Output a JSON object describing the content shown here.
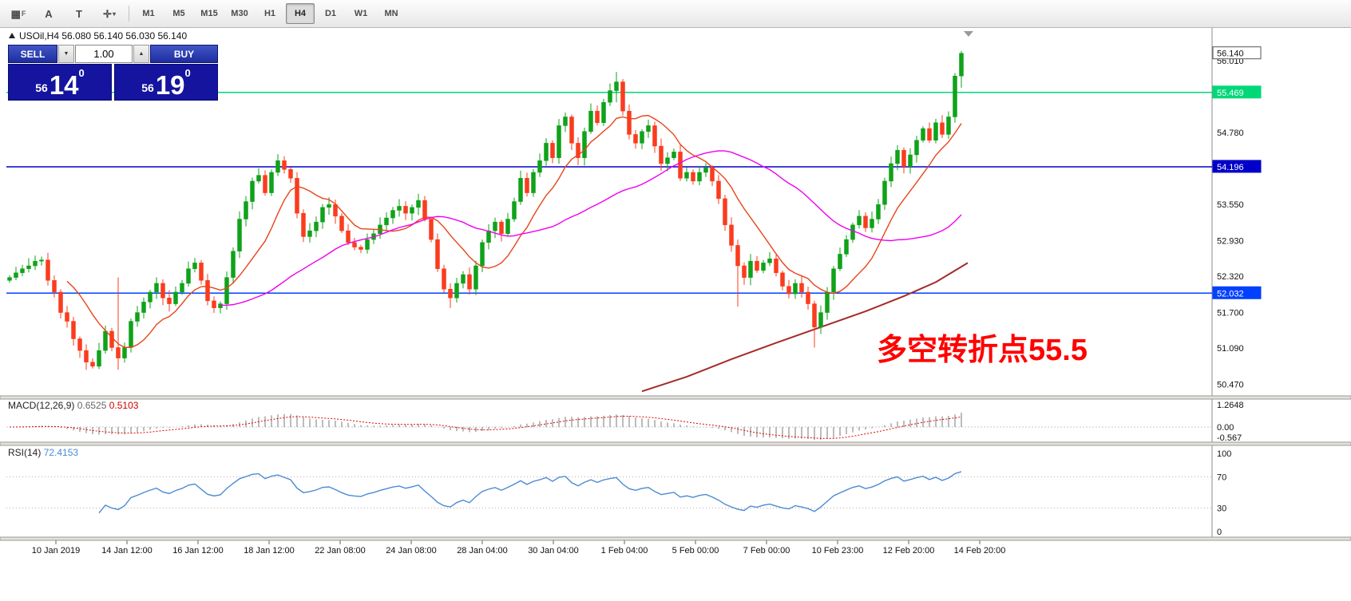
{
  "toolbar": {
    "tool_buttons": [
      {
        "name": "symbols-grid",
        "glyph": "▦",
        "label": "F"
      },
      {
        "name": "cursor-tool",
        "glyph": "A"
      },
      {
        "name": "text-tool",
        "glyph": "T"
      },
      {
        "name": "crosshair-tool",
        "glyph": "✛",
        "caret": "▾"
      }
    ],
    "timeframes": [
      "M1",
      "M5",
      "M15",
      "M30",
      "H1",
      "H4",
      "D1",
      "W1",
      "MN"
    ],
    "selected_timeframe": "H4"
  },
  "chart": {
    "symbol_tf": "USOil,H4",
    "ohlc": "56.080 56.140 56.030 56.140"
  },
  "trade_panel": {
    "sell_label": "SELL",
    "buy_label": "BUY",
    "volume": "1.00",
    "dropdown_glyph": "▼",
    "up_glyph": "▲",
    "sell_price": {
      "small": "56",
      "big": "14",
      "sup": "0"
    },
    "buy_price": {
      "small": "56",
      "big": "19",
      "sup": "0"
    }
  },
  "annotation": {
    "text": "多空转折点55.5",
    "color": "#ff0000"
  },
  "chart_data": {
    "type": "candlestick",
    "symbol": "USOil",
    "timeframe": "H4",
    "ohlc_current": {
      "open": 56.08,
      "high": 56.14,
      "low": 56.03,
      "close": 56.14
    },
    "last_price": "56.140",
    "y_axis": {
      "min": 50.3,
      "max": 56.3,
      "ticks": [
        "56.010",
        "54.780",
        "53.550",
        "52.930",
        "52.320",
        "51.700",
        "51.090",
        "50.470"
      ]
    },
    "levels": [
      {
        "price": 55.469,
        "label": "55.469",
        "color": "#00d878"
      },
      {
        "price": 54.196,
        "label": "54.196",
        "color": "#0000c8"
      },
      {
        "price": 52.032,
        "label": "52.032",
        "color": "#0040ff"
      }
    ],
    "closes": [
      52.3,
      52.38,
      52.45,
      52.5,
      52.58,
      52.6,
      52.25,
      52.05,
      51.7,
      51.55,
      51.25,
      51.05,
      50.85,
      50.78,
      51.05,
      51.38,
      51.1,
      50.92,
      51.1,
      51.55,
      51.7,
      51.88,
      52.05,
      52.2,
      51.95,
      51.85,
      52.05,
      52.2,
      52.45,
      52.55,
      52.25,
      51.9,
      51.78,
      51.85,
      52.3,
      52.75,
      53.3,
      53.6,
      53.95,
      54.05,
      53.75,
      54.1,
      54.3,
      54.15,
      54.0,
      53.4,
      53.0,
      53.1,
      53.25,
      53.5,
      53.55,
      53.35,
      53.1,
      52.9,
      52.82,
      52.78,
      52.95,
      53.05,
      53.2,
      53.32,
      53.45,
      53.52,
      53.4,
      53.5,
      53.62,
      53.3,
      52.95,
      52.45,
      52.1,
      51.95,
      52.2,
      52.35,
      52.1,
      52.5,
      52.9,
      53.1,
      53.25,
      53.05,
      53.3,
      53.6,
      54.0,
      53.75,
      54.1,
      54.3,
      54.6,
      54.35,
      54.9,
      55.05,
      54.6,
      54.35,
      54.8,
      55.15,
      54.95,
      55.3,
      55.5,
      55.65,
      55.15,
      54.75,
      54.6,
      54.8,
      54.9,
      54.55,
      54.25,
      54.35,
      54.45,
      54.0,
      54.1,
      53.95,
      54.1,
      54.18,
      53.95,
      53.65,
      53.2,
      52.85,
      52.5,
      52.3,
      52.58,
      52.42,
      52.55,
      52.62,
      52.38,
      52.15,
      52.02,
      52.2,
      52.05,
      51.85,
      51.45,
      51.7,
      52.05,
      52.45,
      52.7,
      52.95,
      53.2,
      53.35,
      53.15,
      53.3,
      53.55,
      53.95,
      54.25,
      54.48,
      54.2,
      54.4,
      54.65,
      54.85,
      54.65,
      54.95,
      54.75,
      55.05,
      55.75,
      56.14
    ],
    "wick_overrides": [
      [
        17,
        52.3,
        50.72
      ],
      [
        69,
        52.2,
        51.78
      ],
      [
        95,
        55.82,
        55.3
      ],
      [
        114,
        52.95,
        51.8
      ],
      [
        126,
        51.9,
        51.1
      ],
      [
        148,
        55.8,
        54.95
      ],
      [
        149,
        56.18,
        55.55
      ]
    ],
    "ma_long_points": [
      [
        99,
        50.35
      ],
      [
        106,
        50.6
      ],
      [
        113,
        50.9
      ],
      [
        120,
        51.18
      ],
      [
        127,
        51.45
      ],
      [
        134,
        51.72
      ],
      [
        140,
        51.98
      ],
      [
        145,
        52.22
      ],
      [
        150,
        52.55
      ]
    ],
    "x_labels": [
      "10 Jan 2019",
      "14 Jan 12:00",
      "16 Jan 12:00",
      "18 Jan 12:00",
      "22 Jan 08:00",
      "24 Jan 08:00",
      "28 Jan 04:00",
      "30 Jan 04:00",
      "1 Feb 04:00",
      "5 Feb 00:00",
      "7 Feb 00:00",
      "10 Feb 23:00",
      "12 Feb 20:00",
      "14 Feb 20:00"
    ],
    "indicators": {
      "macd": {
        "label": "MACD(12,26,9)",
        "value_main": "0.6525",
        "value_signal": "0.5103",
        "scale": [
          "1.2648",
          "0.00",
          "-0.567"
        ]
      },
      "rsi": {
        "label": "RSI(14)",
        "value": "72.4153",
        "scale": [
          100,
          70,
          30,
          0
        ],
        "levels": [
          70,
          30
        ]
      }
    },
    "colors": {
      "bull": "#0fa21a",
      "bear": "#fa3c1e",
      "ma_fast": "#e8441a",
      "ma_mid": "#f000f0",
      "ma_long": "#a52a2a",
      "rsi": "#4a8bd4",
      "macd_signal": "#e00000",
      "macd_bars": "#7a7a7a"
    }
  }
}
